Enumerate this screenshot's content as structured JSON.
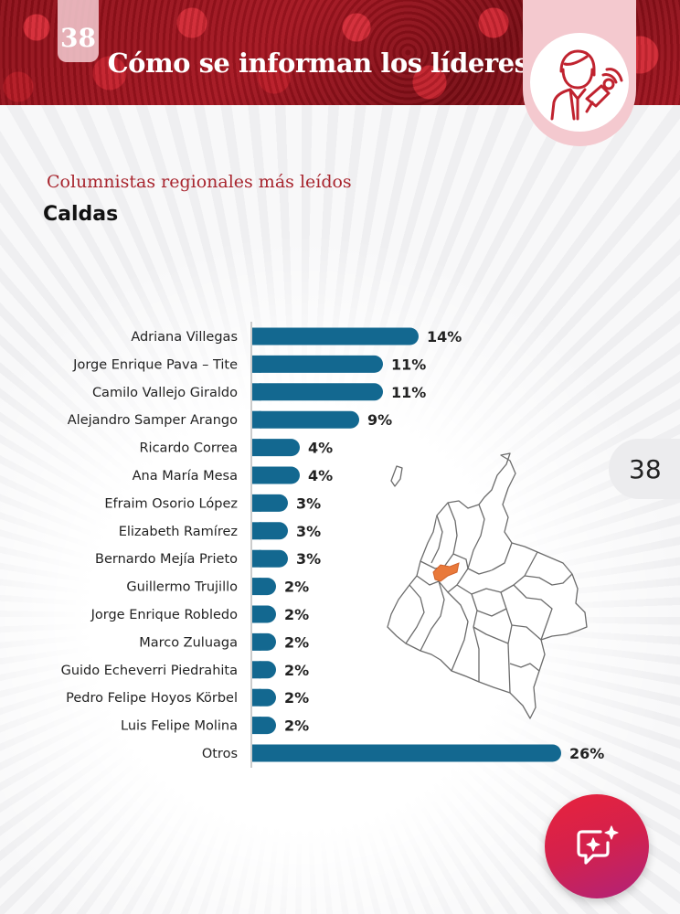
{
  "header": {
    "page_number": "38",
    "title": "Cómo se informan los líderes",
    "icon": "leader-speaking-icon"
  },
  "subtitle": "Columnistas regionales más leídos",
  "region": "Caldas",
  "side_page_tab": "38",
  "fab_icon": "chat-sparkle-icon",
  "map_icon": "colombia-map-icon",
  "colors": {
    "bar": "#136890",
    "header_accent": "#a8252e",
    "map_highlight": "#e9793a",
    "fab": "#e8223c"
  },
  "chart_data": {
    "type": "bar",
    "orientation": "horizontal",
    "categories": [
      "Adriana Villegas",
      "Jorge Enrique Pava – Tite",
      "Camilo Vallejo Giraldo",
      "Alejandro Samper Arango",
      "Ricardo Correa",
      "Ana María Mesa",
      "Efraim Osorio López",
      "Elizabeth Ramírez",
      "Bernardo Mejía Prieto",
      "Guillermo Trujillo",
      "Jorge Enrique Robledo",
      "Marco Zuluaga",
      "Guido Echeverri Piedrahita",
      "Pedro Felipe Hoyos Körbel",
      "Luis Felipe Molina",
      "Otros"
    ],
    "values": [
      14,
      11,
      11,
      9,
      4,
      4,
      3,
      3,
      3,
      2,
      2,
      2,
      2,
      2,
      2,
      26
    ],
    "labels": [
      "14%",
      "11%",
      "11%",
      "9%",
      "4%",
      "4%",
      "3%",
      "3%",
      "3%",
      "2%",
      "2%",
      "2%",
      "2%",
      "2%",
      "2%",
      "26%"
    ],
    "title": "",
    "xlabel": "",
    "ylabel": "",
    "xlim": [
      0,
      26
    ],
    "grid": false,
    "legend": "none"
  }
}
